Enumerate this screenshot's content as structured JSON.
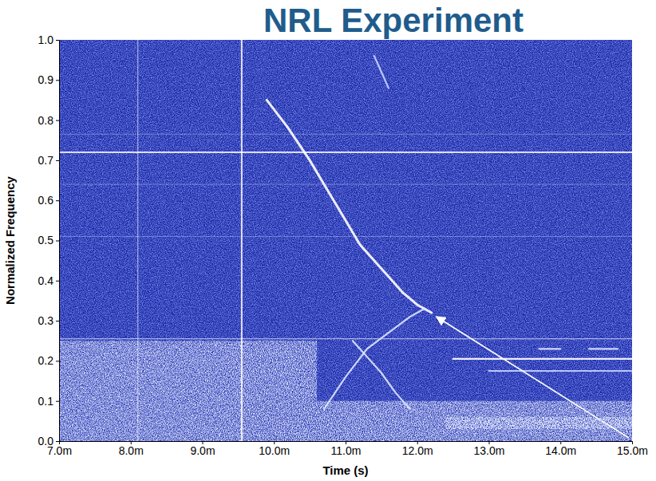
{
  "chart_data": {
    "type": "spectrogram",
    "title": "NRL Experiment",
    "x_label": "Time (s)",
    "y_label": "Normalized Frequency",
    "color": "#1a28a8",
    "xlim": [
      7,
      15
    ],
    "ylim": [
      0,
      1
    ],
    "xticks": [
      {
        "value": 7,
        "label": "7.0m"
      },
      {
        "value": 8,
        "label": "8.0m"
      },
      {
        "value": 9,
        "label": "9.0m"
      },
      {
        "value": 10,
        "label": "10.0m"
      },
      {
        "value": 11,
        "label": "11.0m"
      },
      {
        "value": 12,
        "label": "12.0m"
      },
      {
        "value": 13,
        "label": "13.0m"
      },
      {
        "value": 14,
        "label": "14.0m"
      },
      {
        "value": 15,
        "label": "15.0m"
      }
    ],
    "yticks": [
      {
        "value": 0,
        "label": "0.0"
      },
      {
        "value": 0.1,
        "label": "0.1"
      },
      {
        "value": 0.2,
        "label": "0.2"
      },
      {
        "value": 0.3,
        "label": "0.3"
      },
      {
        "value": 0.4,
        "label": "0.4"
      },
      {
        "value": 0.5,
        "label": "0.5"
      },
      {
        "value": 0.6,
        "label": "0.6"
      },
      {
        "value": 0.7,
        "label": "0.7"
      },
      {
        "value": 0.8,
        "label": "0.8"
      },
      {
        "value": 0.9,
        "label": "0.9"
      },
      {
        "value": 1,
        "label": "1.0"
      }
    ],
    "regions": [
      {
        "x": [
          7,
          10.6
        ],
        "y": [
          0,
          0.25
        ]
      },
      {
        "x": [
          10.6,
          15
        ],
        "y": [
          0,
          0.1
        ]
      },
      {
        "x": [
          12.4,
          15
        ],
        "y": [
          0.03,
          0.06
        ]
      }
    ],
    "hlines": [
      0.72,
      0.255,
      0.51,
      0.765,
      0.64
    ],
    "vlines": [
      8.1,
      9.55
    ],
    "series": [
      {
        "type": "line",
        "color": "#ffffff",
        "x": [
          9.9,
          10.2,
          10.5,
          10.8,
          11.0,
          11.2,
          11.4,
          11.6,
          11.8,
          12.0,
          12.2
        ],
        "values": [
          0.85,
          0.78,
          0.7,
          0.61,
          0.55,
          0.49,
          0.45,
          0.41,
          0.37,
          0.34,
          0.32
        ]
      },
      {
        "type": "line",
        "color": "#c8d4ff",
        "x": [
          11.4,
          11.5,
          11.6
        ],
        "values": [
          0.96,
          0.92,
          0.88
        ]
      },
      {
        "type": "line",
        "color": "#dfe6ff",
        "x": [
          10.7,
          11.0,
          11.3,
          11.6,
          11.9,
          12.1
        ],
        "values": [
          0.08,
          0.16,
          0.23,
          0.27,
          0.31,
          0.33
        ]
      },
      {
        "type": "line",
        "color": "#dfe6ff",
        "x": [
          11.1,
          11.3,
          11.5,
          11.7,
          11.9
        ],
        "values": [
          0.25,
          0.21,
          0.17,
          0.12,
          0.08
        ]
      },
      {
        "type": "line",
        "color": "#ffffff",
        "x": [
          12.5,
          13.0,
          13.5,
          14.0,
          14.5,
          15.0
        ],
        "values": [
          0.205,
          0.205,
          0.205,
          0.205,
          0.205,
          0.205
        ]
      },
      {
        "type": "line",
        "color": "#c8d4ff",
        "x": [
          13.0,
          13.5,
          14.0,
          14.5,
          15.0
        ],
        "values": [
          0.175,
          0.175,
          0.175,
          0.175,
          0.175
        ]
      },
      {
        "type": "line",
        "color": "#dfe6ff",
        "x": [
          13.7,
          14.0,
          14.1,
          14.4,
          14.5,
          14.8
        ],
        "values": [
          0.23,
          0.23,
          null,
          0.23,
          0.23,
          0.23
        ]
      }
    ]
  }
}
